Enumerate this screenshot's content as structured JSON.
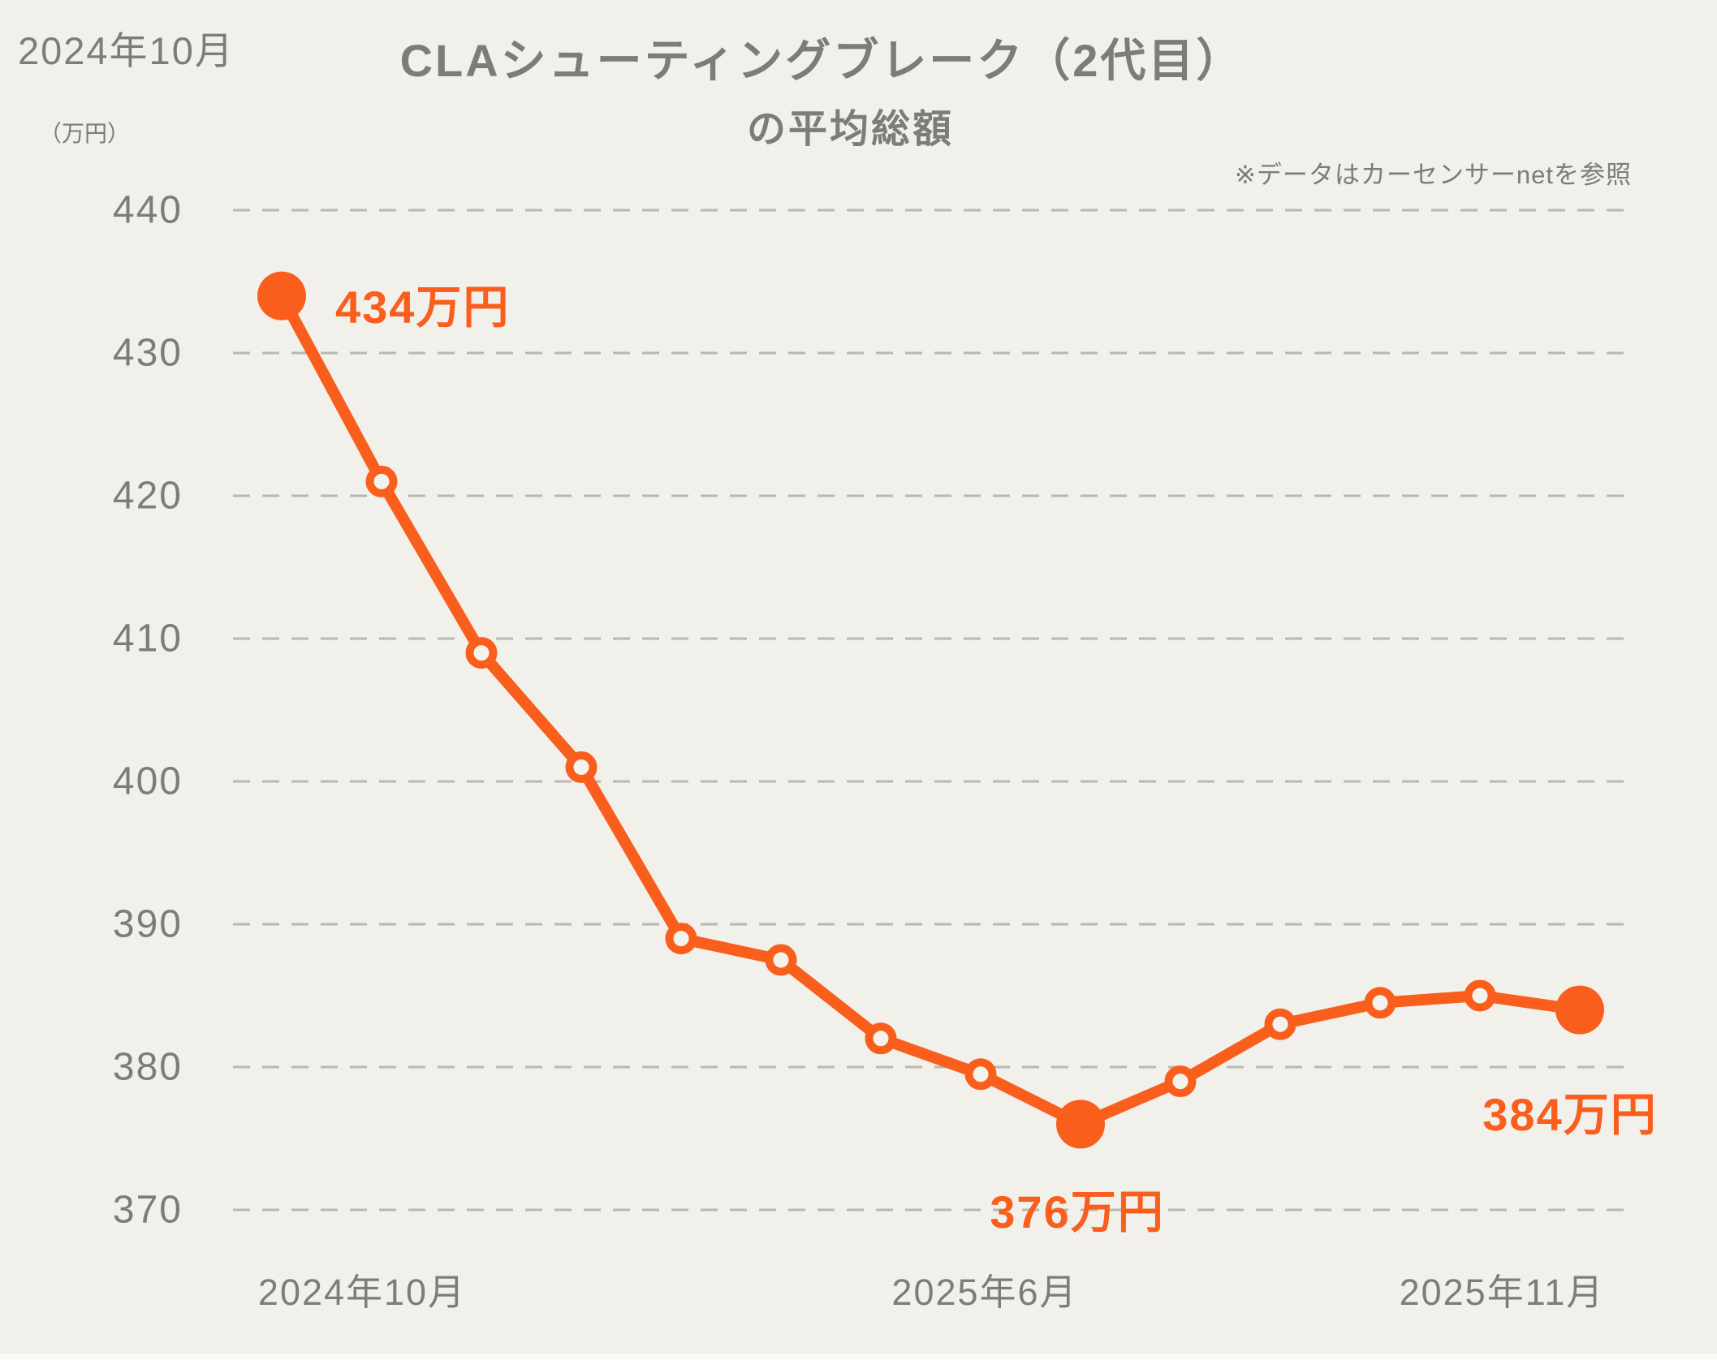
{
  "header": {
    "current_month": "2024年10月"
  },
  "title": {
    "line1": "CLAシューティングブレーク（2代目）",
    "line2": "の平均総額"
  },
  "note": "※データはカーセンサーnetを参照",
  "colors": {
    "accent_orange": "#F95E1C",
    "text_grey": "#7D7C78",
    "gridline_grey": "#B9B7B2",
    "background": "#F2F0EB",
    "marker_hole": "#F4F2ED"
  },
  "y_axis": {
    "unit": "（万円）",
    "ticks": [
      440,
      430,
      420,
      410,
      400,
      390,
      380,
      370
    ]
  },
  "x_axis": {
    "tick_labels": [
      "2024年10月",
      "2025年6月",
      "2025年11月"
    ]
  },
  "chart_data": {
    "type": "line",
    "title": "CLAシューティングブレーク（2代目）の平均総額",
    "ylabel": "（万円）",
    "ylim": [
      370,
      440
    ],
    "grid": "horizontal-dashed",
    "x": [
      "2024年10月",
      "2024年11月",
      "2024年12月",
      "2025年1月",
      "2025年2月",
      "2025年3月",
      "2025年4月",
      "2025年5月",
      "2025年6月",
      "2025年7月",
      "2025年8月",
      "2025年9月",
      "2025年10月",
      "2025年11月"
    ],
    "values": [
      434,
      421,
      409,
      401,
      389,
      387.5,
      382,
      379.5,
      376,
      379,
      383,
      384.5,
      385,
      384
    ],
    "emphasized_points": [
      0,
      8,
      13
    ],
    "annotations": [
      {
        "index": 0,
        "text": "434万円"
      },
      {
        "index": 8,
        "text": "376万円"
      },
      {
        "index": 13,
        "text": "384万円"
      }
    ]
  }
}
